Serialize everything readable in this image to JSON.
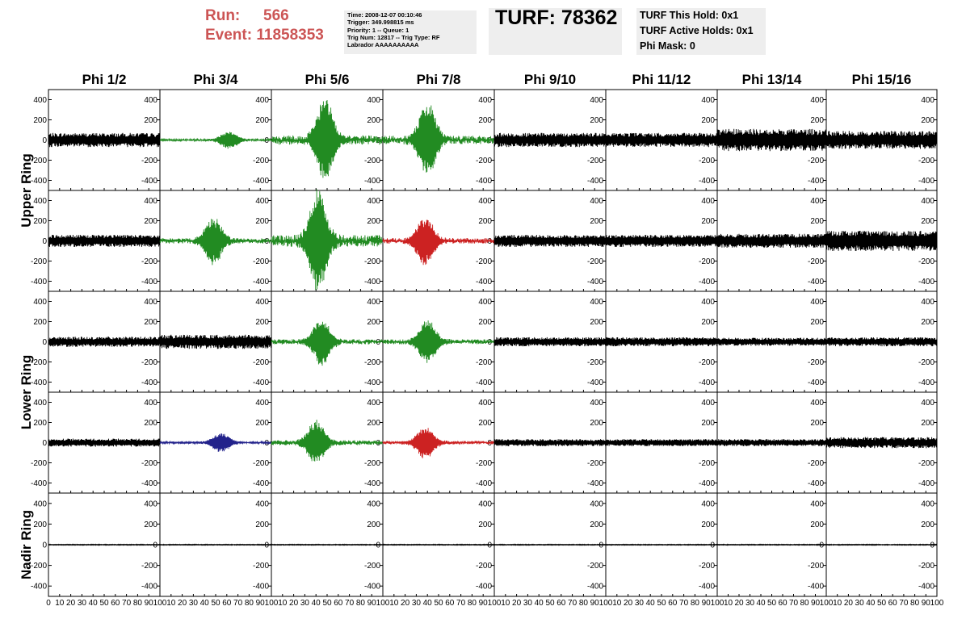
{
  "header": {
    "run_label": "Run:",
    "run_value": "566",
    "event_label": "Event:",
    "event_value": "11858353",
    "info_lines": [
      "Time: 2008-12-07 00:10:46",
      "Trigger: 349.998815 ms",
      "Priority: 1 -- Queue: 1",
      "Trig Num: 12817 -- Trig Type: RF",
      "Labrador AAAAAAAAAA"
    ],
    "turf_text": "TURF: 78362",
    "holds": [
      "TURF This Hold: 0x1",
      "TURF Active Holds: 0x1",
      "Phi Mask: 0"
    ]
  },
  "colors": {
    "header_red": "#cc5555",
    "box_bg": "#eeeeee",
    "black": "#000000",
    "green": "#228b22",
    "red": "#cc2222",
    "blue": "#22228b"
  },
  "chart_data": {
    "type": "line",
    "columns": [
      "Phi 1/2",
      "Phi 3/4",
      "Phi 5/6",
      "Phi 7/8",
      "Phi 9/10",
      "Phi 11/12",
      "Phi 13/14",
      "Phi 15/16"
    ],
    "ring_labels": [
      "Upper Ring",
      "Lower Ring",
      "Nadir Ring"
    ],
    "rows_per_ring": [
      2,
      2,
      1
    ],
    "xlim": [
      0,
      100
    ],
    "ylim": [
      -500,
      500
    ],
    "xticks": [
      0,
      10,
      20,
      30,
      40,
      50,
      60,
      70,
      80,
      90,
      100
    ],
    "yticks": [
      400,
      200,
      0,
      -200,
      -400
    ],
    "panel_colors": [
      [
        "black",
        "green",
        "green",
        "green",
        "black",
        "black",
        "black",
        "black"
      ],
      [
        "black",
        "green",
        "green",
        "red",
        "black",
        "black",
        "black",
        "black"
      ],
      [
        "black",
        "black",
        "green",
        "green",
        "black",
        "black",
        "black",
        "black"
      ],
      [
        "black",
        "blue",
        "green",
        "red",
        "black",
        "black",
        "black",
        "black"
      ],
      [
        "black",
        "black",
        "black",
        "black",
        "black",
        "black",
        "black",
        "black"
      ]
    ],
    "panel_amplitude": [
      [
        70,
        80,
        380,
        350,
        70,
        70,
        110,
        90
      ],
      [
        60,
        220,
        480,
        230,
        60,
        60,
        70,
        100
      ],
      [
        50,
        70,
        220,
        200,
        45,
        45,
        40,
        45
      ],
      [
        40,
        90,
        210,
        150,
        35,
        35,
        35,
        55
      ],
      [
        4,
        4,
        4,
        4,
        4,
        4,
        4,
        4
      ]
    ],
    "panel_burst_center": [
      [
        null,
        62,
        48,
        40,
        null,
        null,
        null,
        null
      ],
      [
        null,
        48,
        42,
        38,
        null,
        null,
        null,
        null
      ],
      [
        null,
        null,
        45,
        40,
        null,
        null,
        null,
        null
      ],
      [
        null,
        55,
        40,
        38,
        null,
        null,
        null,
        null
      ],
      [
        null,
        null,
        null,
        null,
        null,
        null,
        null,
        null
      ]
    ]
  }
}
